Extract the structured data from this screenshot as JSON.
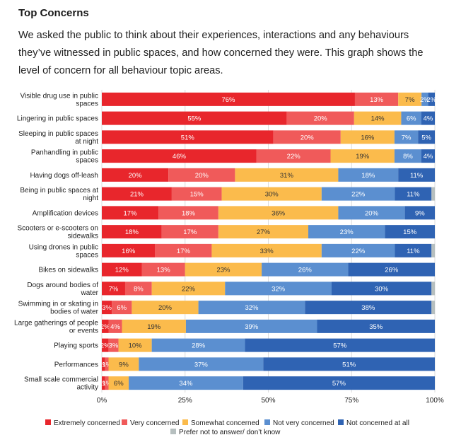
{
  "header": {
    "title": "Top Concerns",
    "description": "We asked the public to think about their experiences, interactions and any behaviours they’ve witnessed in public spaces, and how concerned they were. This graph shows the level of concern for all behaviour topic areas."
  },
  "chart_data": {
    "type": "bar",
    "orientation": "horizontal",
    "stacked": true,
    "xlim": [
      0,
      100
    ],
    "x_ticks": [
      "0%",
      "25%",
      "50%",
      "75%",
      "100%"
    ],
    "grid": true,
    "legend_position": "bottom",
    "categories": [
      [
        "Visible drug use in public",
        "spaces"
      ],
      [
        "Lingering in public spaces"
      ],
      [
        "Sleeping in public spaces",
        "at night"
      ],
      [
        "Panhandling in public",
        "spaces"
      ],
      [
        "Having dogs off-leash"
      ],
      [
        "Being in public spaces at",
        "night"
      ],
      [
        "Amplification devices"
      ],
      [
        "Scooters or e-scooters on",
        "sidewalks"
      ],
      [
        "Using drones in public",
        "spaces"
      ],
      [
        "Bikes on sidewalks"
      ],
      [
        "Dogs around bodies of",
        "water"
      ],
      [
        "Swimming in or skating in",
        "bodies of water"
      ],
      [
        "Large gatherings of people",
        "or events"
      ],
      [
        "Playing sports"
      ],
      [
        "Performances"
      ],
      [
        "Small scale commercial",
        "activity"
      ]
    ],
    "series": [
      {
        "name": "Extremely concerned",
        "color": "#e8262c",
        "values": [
          76,
          55,
          51,
          46,
          20,
          21,
          17,
          18,
          16,
          12,
          7,
          3,
          2,
          2,
          1,
          1
        ]
      },
      {
        "name": "Very concerned",
        "color": "#f05a5a",
        "values": [
          13,
          20,
          20,
          22,
          20,
          15,
          18,
          17,
          17,
          13,
          8,
          6,
          4,
          3,
          1,
          1
        ]
      },
      {
        "name": "Somewhat concerned",
        "color": "#fbbb4c",
        "values": [
          7,
          14,
          16,
          19,
          31,
          30,
          36,
          27,
          33,
          23,
          22,
          20,
          19,
          10,
          9,
          6
        ]
      },
      {
        "name": "Not very concerned",
        "color": "#5b8fd0",
        "values": [
          2,
          6,
          7,
          8,
          18,
          22,
          20,
          23,
          22,
          26,
          32,
          32,
          39,
          28,
          37,
          34
        ]
      },
      {
        "name": "Not concerned at all",
        "color": "#2f63b3",
        "values": [
          2,
          4,
          5,
          4,
          11,
          11,
          9,
          15,
          11,
          26,
          30,
          38,
          35,
          57,
          51,
          57
        ]
      },
      {
        "name": "Prefer not to answer/ don’t know",
        "color": "#b6bfbf",
        "values": [
          0,
          0,
          0,
          0,
          0,
          1,
          0,
          0,
          1,
          0,
          1,
          1,
          0,
          0,
          0,
          0
        ]
      }
    ]
  }
}
